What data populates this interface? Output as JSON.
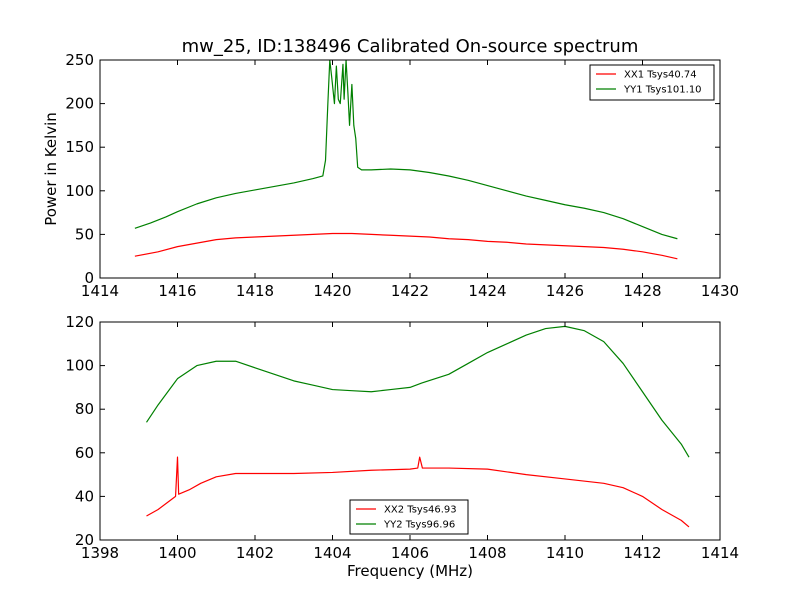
{
  "chart_data": [
    {
      "type": "line",
      "title": "mw_25, ID:138496 Calibrated On-source spectrum",
      "xlabel": "",
      "ylabel": "Power in Kelvin",
      "xlim": [
        1414,
        1430
      ],
      "ylim": [
        0,
        250
      ],
      "xticks": [
        "1414",
        "1416",
        "1418",
        "1420",
        "1422",
        "1424",
        "1426",
        "1428",
        "1430"
      ],
      "yticks": [
        "0",
        "50",
        "100",
        "150",
        "200",
        "250"
      ],
      "legend_position": "top-right",
      "grid": false,
      "series": [
        {
          "name": "XX1 Tsys40.74",
          "color": "#ff0000",
          "points": [
            [
              1414.9,
              25
            ],
            [
              1415.5,
              30
            ],
            [
              1416,
              36
            ],
            [
              1416.5,
              40
            ],
            [
              1417,
              44
            ],
            [
              1417.5,
              46
            ],
            [
              1418,
              47
            ],
            [
              1418.5,
              48
            ],
            [
              1419,
              49
            ],
            [
              1419.5,
              50
            ],
            [
              1420,
              51
            ],
            [
              1420.5,
              51
            ],
            [
              1421,
              50
            ],
            [
              1421.5,
              49
            ],
            [
              1422,
              48
            ],
            [
              1422.5,
              47
            ],
            [
              1423,
              45
            ],
            [
              1423.5,
              44
            ],
            [
              1424,
              42
            ],
            [
              1424.5,
              41
            ],
            [
              1425,
              39
            ],
            [
              1425.5,
              38
            ],
            [
              1426,
              37
            ],
            [
              1426.5,
              36
            ],
            [
              1427,
              35
            ],
            [
              1427.5,
              33
            ],
            [
              1428,
              30
            ],
            [
              1428.5,
              26
            ],
            [
              1428.9,
              22
            ]
          ]
        },
        {
          "name": "YY1 Tsys101.10",
          "color": "#008000",
          "points": [
            [
              1414.9,
              57
            ],
            [
              1415.3,
              63
            ],
            [
              1415.7,
              70
            ],
            [
              1416,
              76
            ],
            [
              1416.5,
              85
            ],
            [
              1417,
              92
            ],
            [
              1417.5,
              97
            ],
            [
              1418,
              101
            ],
            [
              1418.5,
              105
            ],
            [
              1419,
              109
            ],
            [
              1419.5,
              114
            ],
            [
              1419.75,
              117
            ],
            [
              1419.82,
              135
            ],
            [
              1419.88,
              200
            ],
            [
              1419.93,
              250
            ],
            [
              1419.98,
              230
            ],
            [
              1420.05,
              200
            ],
            [
              1420.1,
              243
            ],
            [
              1420.15,
              205
            ],
            [
              1420.2,
              200
            ],
            [
              1420.27,
              245
            ],
            [
              1420.3,
              205
            ],
            [
              1420.35,
              250
            ],
            [
              1420.4,
              210
            ],
            [
              1420.44,
              175
            ],
            [
              1420.5,
              222
            ],
            [
              1420.55,
              175
            ],
            [
              1420.6,
              160
            ],
            [
              1420.65,
              127
            ],
            [
              1420.75,
              124
            ],
            [
              1421,
              124
            ],
            [
              1421.5,
              125
            ],
            [
              1422,
              124
            ],
            [
              1422.5,
              121
            ],
            [
              1423,
              117
            ],
            [
              1423.5,
              112
            ],
            [
              1424,
              106
            ],
            [
              1424.5,
              100
            ],
            [
              1425,
              94
            ],
            [
              1425.5,
              89
            ],
            [
              1426,
              84
            ],
            [
              1426.5,
              80
            ],
            [
              1427,
              75
            ],
            [
              1427.5,
              68
            ],
            [
              1428,
              59
            ],
            [
              1428.5,
              50
            ],
            [
              1428.9,
              45
            ]
          ]
        }
      ]
    },
    {
      "type": "line",
      "title": "",
      "xlabel": "Frequency (MHz)",
      "ylabel": "",
      "xlim": [
        1398,
        1414
      ],
      "ylim": [
        20,
        120
      ],
      "xticks": [
        "1398",
        "1400",
        "1402",
        "1404",
        "1406",
        "1408",
        "1410",
        "1412",
        "1414"
      ],
      "yticks": [
        "20",
        "40",
        "60",
        "80",
        "100",
        "120"
      ],
      "legend_position": "bottom-center",
      "grid": false,
      "series": [
        {
          "name": "XX2 Tsys46.93",
          "color": "#ff0000",
          "points": [
            [
              1399.2,
              31
            ],
            [
              1399.5,
              34
            ],
            [
              1399.8,
              38
            ],
            [
              1399.95,
              40
            ],
            [
              1400,
              58
            ],
            [
              1400.03,
              41
            ],
            [
              1400.3,
              43
            ],
            [
              1400.6,
              46
            ],
            [
              1401,
              49
            ],
            [
              1401.5,
              50.5
            ],
            [
              1402,
              50.5
            ],
            [
              1403,
              50.5
            ],
            [
              1404,
              51
            ],
            [
              1405,
              52
            ],
            [
              1406,
              52.5
            ],
            [
              1406.2,
              53
            ],
            [
              1406.25,
              58
            ],
            [
              1406.32,
              53
            ],
            [
              1407,
              53
            ],
            [
              1408,
              52.5
            ],
            [
              1409,
              50
            ],
            [
              1410,
              48
            ],
            [
              1411,
              46
            ],
            [
              1411.5,
              44
            ],
            [
              1412,
              40
            ],
            [
              1412.5,
              34
            ],
            [
              1413,
              29
            ],
            [
              1413.2,
              26
            ]
          ]
        },
        {
          "name": "YY2 Tsys96.96",
          "color": "#008000",
          "points": [
            [
              1399.2,
              74
            ],
            [
              1399.5,
              82
            ],
            [
              1400,
              94
            ],
            [
              1400.5,
              100
            ],
            [
              1401,
              102
            ],
            [
              1401.5,
              102
            ],
            [
              1402,
              99
            ],
            [
              1402.5,
              96
            ],
            [
              1403,
              93
            ],
            [
              1403.5,
              91
            ],
            [
              1404,
              89
            ],
            [
              1404.5,
              88.5
            ],
            [
              1405,
              88
            ],
            [
              1405.5,
              89
            ],
            [
              1406,
              90
            ],
            [
              1406.3,
              92
            ],
            [
              1407,
              96
            ],
            [
              1407.5,
              101
            ],
            [
              1408,
              106
            ],
            [
              1408.5,
              110
            ],
            [
              1409,
              114
            ],
            [
              1409.5,
              117
            ],
            [
              1410,
              118
            ],
            [
              1410.5,
              116
            ],
            [
              1411,
              111
            ],
            [
              1411.5,
              101
            ],
            [
              1412,
              88
            ],
            [
              1412.5,
              75
            ],
            [
              1413,
              64
            ],
            [
              1413.2,
              58
            ]
          ]
        }
      ]
    }
  ]
}
